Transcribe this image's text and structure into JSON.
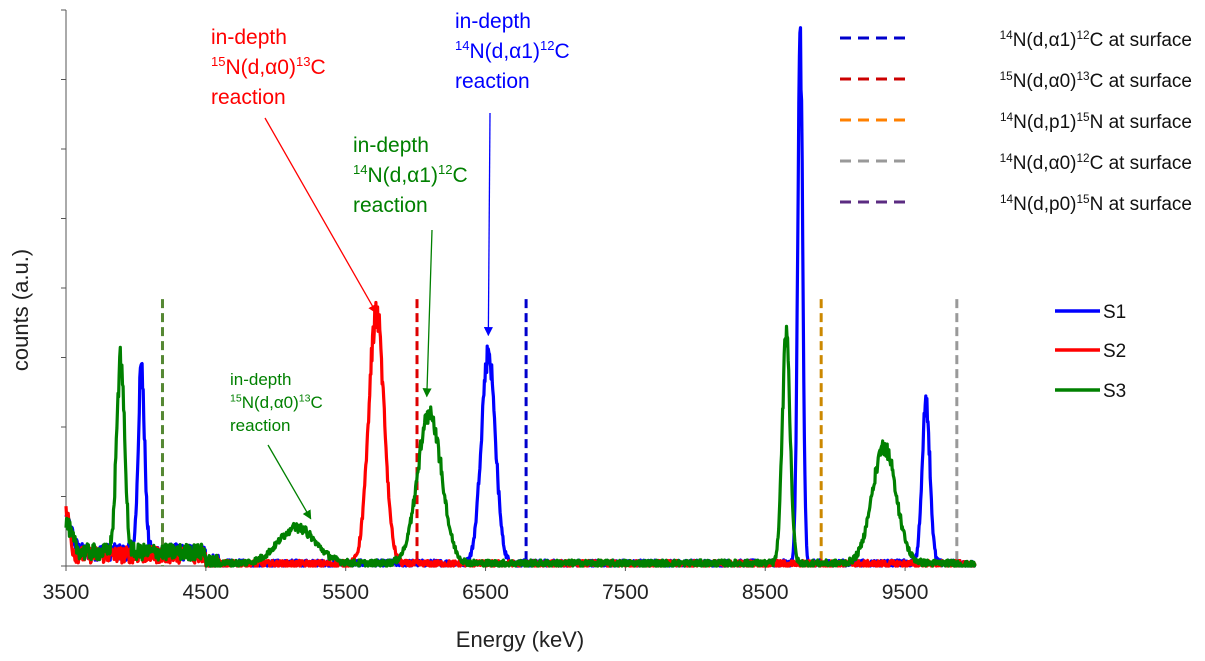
{
  "chart_data": {
    "type": "line",
    "title": "",
    "xlabel": "Energy (keV)",
    "ylabel": "counts (a.u.)",
    "xlim": [
      3500,
      10000
    ],
    "ylim": [
      0,
      1.0
    ],
    "x_ticks": [
      "3500",
      "4500",
      "5500",
      "6500",
      "7500",
      "8500",
      "9500"
    ],
    "y_ticks_labeled": false,
    "grid": false,
    "series_legend_placement": "right",
    "series": [
      {
        "name": "S1",
        "color": "#0000ff",
        "peaks": [
          {
            "center": 3500,
            "height": 0.06,
            "width": 40
          },
          {
            "center": 4040,
            "height": 0.34,
            "width": 22
          },
          {
            "center": 6520,
            "height": 0.38,
            "width": 50
          },
          {
            "center": 8750,
            "height": 0.93,
            "width": 18
          },
          {
            "center": 9650,
            "height": 0.29,
            "width": 28
          }
        ],
        "baseline": 0.025
      },
      {
        "name": "S2",
        "color": "#ff0000",
        "peaks": [
          {
            "center": 3500,
            "height": 0.08,
            "width": 25
          },
          {
            "center": 5720,
            "height": 0.45,
            "width": 55
          }
        ],
        "baseline": 0.02
      },
      {
        "name": "S3",
        "color": "#008000",
        "peaks": [
          {
            "center": 3500,
            "height": 0.05,
            "width": 40
          },
          {
            "center": 3890,
            "height": 0.35,
            "width": 28
          },
          {
            "center": 5150,
            "height": 0.065,
            "width": 130
          },
          {
            "center": 6100,
            "height": 0.27,
            "width": 85
          },
          {
            "center": 8650,
            "height": 0.41,
            "width": 28
          },
          {
            "center": 9350,
            "height": 0.21,
            "width": 85
          }
        ],
        "baseline": 0.025
      }
    ],
    "surface_lines": [
      {
        "label": "14N(d,α1)12C at surface",
        "x": 6790,
        "color": "#0000cc"
      },
      {
        "label": "15N(d,α0)13C at surface",
        "x": 6010,
        "color": "#dd0000"
      },
      {
        "label": "14N(d,p1)15N at surface",
        "x": 8900,
        "color": "#cc8800"
      },
      {
        "label": "14N(d,α0)12C at surface",
        "x": 9870,
        "color": "#999999"
      },
      {
        "label": "14N(d,p0)15N at surface",
        "x": 4190,
        "color": "#558833"
      }
    ],
    "surface_legend": [
      {
        "color": "#0000cc",
        "pre": "14",
        "mid": "N(d,α1)",
        "sup2": "12",
        "post": "C at surface"
      },
      {
        "color": "#cc0000",
        "pre": "15",
        "mid": "N(d,α0)",
        "sup2": "13",
        "post": "C at surface"
      },
      {
        "color": "#ff8000",
        "pre": "14",
        "mid": "N(d,p1)",
        "sup2": "15",
        "post": "N at surface"
      },
      {
        "color": "#999999",
        "pre": "14",
        "mid": "N(d,α0)",
        "sup2": "12",
        "post": "C at surface"
      },
      {
        "color": "#5b2b82",
        "pre": "14",
        "mid": "N(d,p0)",
        "sup2": "15",
        "post": "N at surface"
      }
    ],
    "annotations": [
      {
        "color": "#ff0000",
        "line1": "in-depth",
        "pre": "15",
        "mid": "N(d,α0)",
        "sup2": "13",
        "post": "C",
        "line3": "reaction",
        "target_x": 5720,
        "target_y": 0.455
      },
      {
        "color": "#0000ff",
        "line1": "in-depth",
        "pre": "14",
        "mid": "N(d,α1)",
        "sup2": "12",
        "post": "C",
        "line3": "reaction",
        "target_x": 6520,
        "target_y": 0.415
      },
      {
        "color": "#008000",
        "line1": "in-depth",
        "pre": "14",
        "mid": "N(d,α1)",
        "sup2": "12",
        "post": "C",
        "line3": "reaction",
        "target_x": 6080,
        "target_y": 0.305
      },
      {
        "color": "#008000",
        "line1": "in-depth",
        "pre": "15",
        "mid": "N(d,α0)",
        "sup2": "13",
        "post": "C",
        "line3": "reaction",
        "target_x": 5250,
        "target_y": 0.085
      }
    ]
  }
}
